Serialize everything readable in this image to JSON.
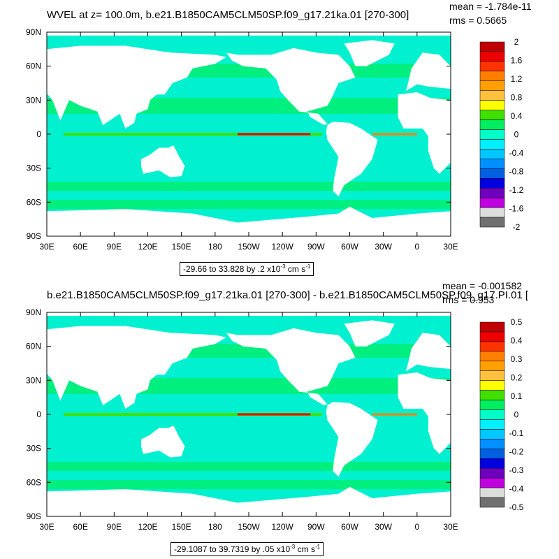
{
  "chart_data": [
    {
      "type": "heatmap",
      "title": "WVEL at z= 100.0m, b.e21.B1850CAM5CLM50SP.f09_g17.21ka.01 [270-300]",
      "mean_text": "mean = -1.784e-11",
      "rms_text": "rms = 0.5665",
      "x_ticks": [
        "30E",
        "60E",
        "90E",
        "120E",
        "150E",
        "180",
        "150W",
        "120W",
        "90W",
        "60W",
        "30W",
        "0",
        "30E"
      ],
      "y_ticks": [
        "90N",
        "60N",
        "30N",
        "0",
        "30S",
        "60S",
        "90S"
      ],
      "colorbar_labels": [
        "2",
        "1.6",
        "1.2",
        "0.8",
        "0.4",
        "0",
        "-0.4",
        "-0.8",
        "-1.2",
        "-1.6",
        "-2"
      ],
      "range_text": "-29.66 to 33.828 by .2 x10",
      "range_units": "cm s",
      "scale_min": -2,
      "scale_max": 2
    },
    {
      "type": "heatmap",
      "title": "b.e21.B1850CAM5CLM50SP.f09_g17.21ka.01 [270-300] - b.e21.B1850CAM5CLM50SP.f09_g17.PI.01 [",
      "mean_text": "mean = -0.001582",
      "rms_text": "rms = 0.953",
      "x_ticks": [
        "30E",
        "60E",
        "90E",
        "120E",
        "150E",
        "180",
        "150W",
        "120W",
        "90W",
        "60W",
        "30W",
        "0",
        "30E"
      ],
      "y_ticks": [
        "90N",
        "60N",
        "30N",
        "0",
        "30S",
        "60S",
        "90S"
      ],
      "colorbar_labels": [
        "0.5",
        "0.4",
        "0.3",
        "0.2",
        "0.1",
        "0",
        "-0.1",
        "-0.2",
        "-0.3",
        "-0.4",
        "-0.5"
      ],
      "range_text": "-29.1087 to 39.7319 by .05 x10",
      "range_units": "cm s",
      "scale_min": -0.5,
      "scale_max": 0.5
    }
  ],
  "colormap": [
    "#c00000",
    "#ee0000",
    "#ff3300",
    "#ff8000",
    "#ffa000",
    "#ffc040",
    "#ffff00",
    "#40e000",
    "#00ee60",
    "#00ffc8",
    "#00f0ff",
    "#00c8ff",
    "#0090ff",
    "#0060e0",
    "#0000e0",
    "#7000c0",
    "#c000e0",
    "#dddddd",
    "#707070"
  ],
  "ocean_color": "#00ee70",
  "deep_ocean_color": "#00f0d0",
  "land_color": "#ffffff"
}
